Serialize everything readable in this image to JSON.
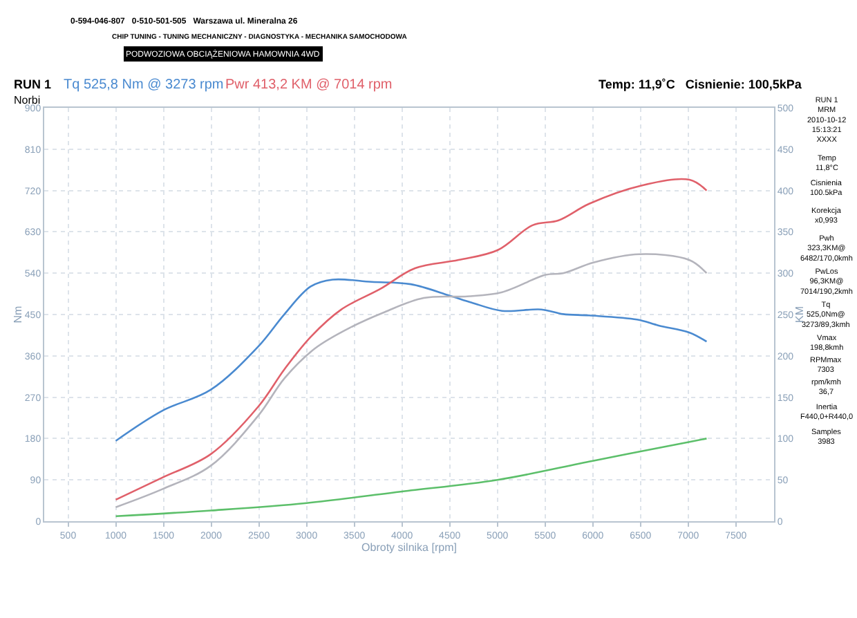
{
  "chart_data": {
    "type": "line",
    "title": "RUN 1",
    "subtitle": "Norbi",
    "xlabel": "Obroty silnika [rpm]",
    "ylabel": "Nm",
    "y2label": "KM",
    "xlim": [
      250,
      7900
    ],
    "xticks": [
      500,
      1000,
      1500,
      2000,
      2500,
      3000,
      3500,
      4000,
      4500,
      5000,
      5500,
      6000,
      6500,
      7000,
      7500
    ],
    "ylim": [
      0,
      900
    ],
    "yticks": [
      0,
      90,
      180,
      270,
      360,
      450,
      540,
      630,
      720,
      810,
      900
    ],
    "y2lim": [
      0,
      500
    ],
    "y2ticks": [
      0,
      50,
      100,
      150,
      200,
      250,
      300,
      350,
      400,
      450,
      500
    ],
    "grid": true,
    "line_style": "solid",
    "marker": "none",
    "series": [
      {
        "name": "Tq 525,8 Nm @ 3273 rpm",
        "color": "#4a8ad0",
        "x": [
          1000,
          1492,
          1994,
          2496,
          2769,
          3043,
          3273,
          3681,
          4092,
          4502,
          4730,
          5049,
          5460,
          5688,
          5962,
          6463,
          6691,
          7010,
          7193
        ],
        "values": [
          175,
          241,
          286,
          381,
          451,
          511,
          526,
          521,
          516,
          491,
          476,
          458,
          461,
          451,
          448,
          439,
          426,
          411,
          391
        ]
      },
      {
        "name": "Pwr 413,2 KM @ 7014 rpm",
        "color": "#e0606a",
        "axis": "y2",
        "x": [
          1000,
          1492,
          1994,
          2496,
          2769,
          3043,
          3362,
          3773,
          4137,
          4593,
          5004,
          5368,
          5642,
          5962,
          6509,
          7014,
          7193
        ],
        "values": [
          26,
          53,
          81,
          139,
          184,
          223,
          256,
          281,
          306,
          316,
          328,
          358,
          364,
          384,
          406,
          413,
          400
        ]
      },
      {
        "color": "#b4b4bc",
        "axis": "y2",
        "x": [
          1000,
          1492,
          1994,
          2496,
          2769,
          3088,
          3453,
          3818,
          4228,
          4684,
          5049,
          5505,
          5688,
          6007,
          6486,
          7010,
          7193
        ],
        "values": [
          17,
          39,
          67,
          128,
          173,
          209,
          234,
          253,
          270,
          272,
          277,
          298,
          300,
          313,
          323,
          316,
          300
        ]
      },
      {
        "color": "#5cbf6a",
        "axis": "y2",
        "x": [
          1000,
          2000,
          3000,
          4000,
          5000,
          6000,
          7014,
          7193
        ],
        "values": [
          6,
          13,
          22,
          36,
          50,
          73,
          96,
          100
        ]
      }
    ],
    "annotations": [
      "Temp: 11,9˚C   Cisnienie: 100,5kPa",
      "0-594-046-807   0-510-501-505   Warszawa ul. Mineralna 26",
      "CHIP TUNING - TUNING MECHANICZNY - DIAGNOSTYKA - MECHANIKA SAMOCHODOWA",
      "PODWOZIOWA OBCIĄŻENIOWA HAMOWNIA 4WD",
      "RUN 1\nMRM\n2010-10-12\n15:13:21\nXXXX",
      "Temp\n11,8°C",
      "Cisnienia\n100.5kPa",
      "Korekcja\nx0,993",
      "Pwh\n323,3KM@\n6482/170,0kmh",
      "PwLos\n96,3KM@\n7014/190,2kmh",
      "Tq\n525,0Nm@\n3273/89,3kmh",
      "Vmax\n198,8kmh",
      "RPMmax\n7303",
      "rpm/kmh\n36,7",
      "Inertia\nF440,0+R440,0",
      "Samples\n3983"
    ]
  }
}
